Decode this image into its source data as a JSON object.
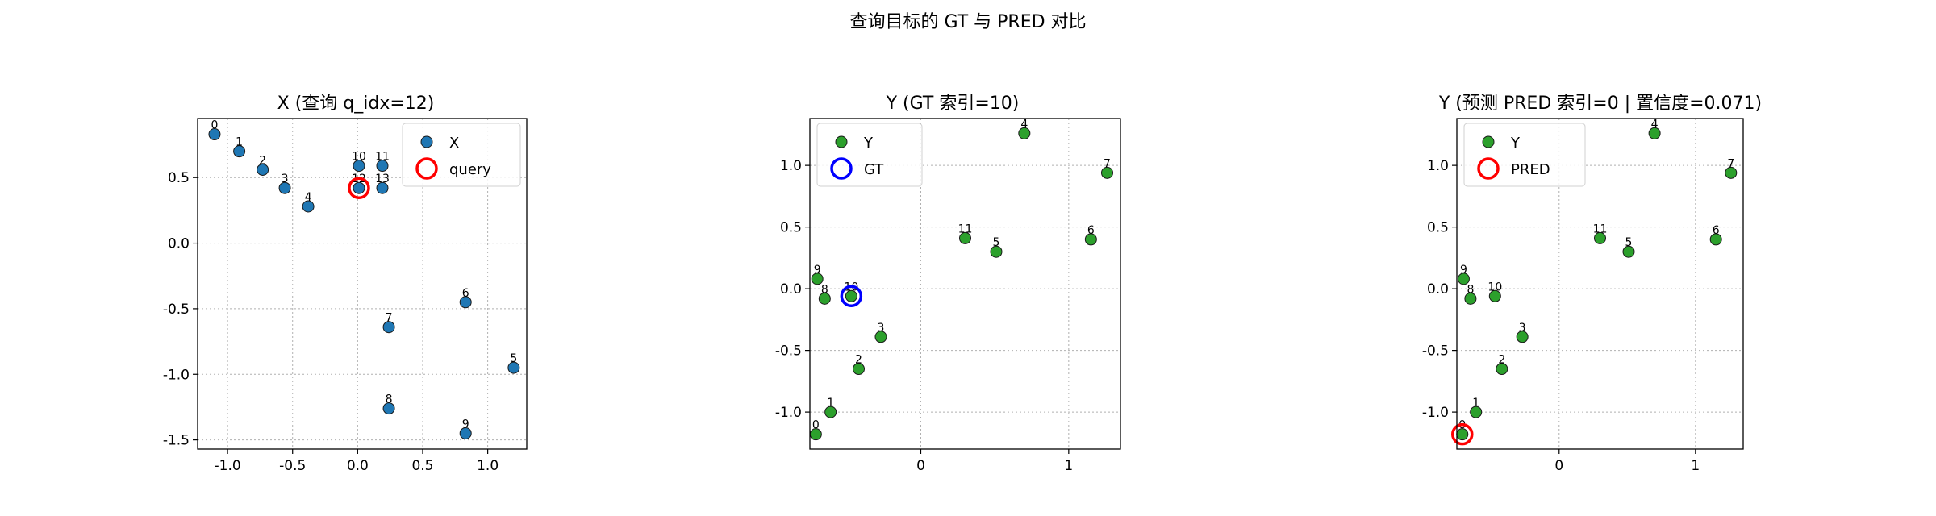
{
  "figure": {
    "suptitle": "查询目标的 GT 与 PRED 对比",
    "colors": {
      "x_points": "#1f77b4",
      "y_points": "#2ca02c",
      "query": "#ff0000",
      "gt": "#0000ff",
      "pred": "#ff0000",
      "grid": "#b0b0b0"
    }
  },
  "chart_data": [
    {
      "type": "scatter",
      "title": "X  (查询 q_idx=12)",
      "xlabel": "",
      "ylabel": "",
      "xlim": [
        -1.23,
        1.3
      ],
      "ylim": [
        -1.57,
        0.95
      ],
      "xticks": [
        -1.0,
        -0.5,
        0.0,
        0.5,
        1.0
      ],
      "xtick_labels": [
        "-1.0",
        "-0.5",
        "0.0",
        "0.5",
        "1.0"
      ],
      "yticks": [
        -1.5,
        -1.0,
        -0.5,
        0.0,
        0.5
      ],
      "ytick_labels": [
        "-1.5",
        "-1.0",
        "-0.5",
        "0.0",
        "0.5"
      ],
      "grid": true,
      "legend": "top-right",
      "series": [
        {
          "name": "X",
          "color": "#1f77b4",
          "marker": "filled-circle",
          "points": [
            {
              "label": "0",
              "x": -1.1,
              "y": 0.83
            },
            {
              "label": "1",
              "x": -0.91,
              "y": 0.7
            },
            {
              "label": "2",
              "x": -0.73,
              "y": 0.56
            },
            {
              "label": "3",
              "x": -0.56,
              "y": 0.42
            },
            {
              "label": "4",
              "x": -0.38,
              "y": 0.28
            },
            {
              "label": "5",
              "x": 1.2,
              "y": -0.95
            },
            {
              "label": "6",
              "x": 0.83,
              "y": -0.45
            },
            {
              "label": "7",
              "x": 0.24,
              "y": -0.64
            },
            {
              "label": "8",
              "x": 0.24,
              "y": -1.26
            },
            {
              "label": "9",
              "x": 0.83,
              "y": -1.45
            },
            {
              "label": "10",
              "x": 0.01,
              "y": 0.59
            },
            {
              "label": "11",
              "x": 0.19,
              "y": 0.59
            },
            {
              "label": "12",
              "x": 0.01,
              "y": 0.42
            },
            {
              "label": "13",
              "x": 0.19,
              "y": 0.42
            }
          ]
        },
        {
          "name": "query",
          "color": "#ff0000",
          "marker": "hollow-ring",
          "points": [
            {
              "x": 0.01,
              "y": 0.42
            }
          ]
        }
      ]
    },
    {
      "type": "scatter",
      "title": "Y  (GT 索引=10)",
      "xlabel": "",
      "ylabel": "",
      "xlim": [
        -0.75,
        1.35
      ],
      "ylim": [
        -1.3,
        1.38
      ],
      "xticks": [
        0,
        1
      ],
      "xtick_labels": [
        "0",
        "1"
      ],
      "yticks": [
        -1.0,
        -0.5,
        0.0,
        0.5,
        1.0
      ],
      "ytick_labels": [
        "-1.0",
        "-0.5",
        "0.0",
        "0.5",
        "1.0"
      ],
      "grid": true,
      "legend": "top-left",
      "series": [
        {
          "name": "Y",
          "color": "#2ca02c",
          "marker": "filled-circle",
          "points": [
            {
              "label": "0",
              "x": -0.71,
              "y": -1.18
            },
            {
              "label": "1",
              "x": -0.61,
              "y": -1.0
            },
            {
              "label": "2",
              "x": -0.42,
              "y": -0.65
            },
            {
              "label": "3",
              "x": -0.27,
              "y": -0.39
            },
            {
              "label": "4",
              "x": 0.7,
              "y": 1.26
            },
            {
              "label": "5",
              "x": 0.51,
              "y": 0.3
            },
            {
              "label": "6",
              "x": 1.15,
              "y": 0.4
            },
            {
              "label": "7",
              "x": 1.26,
              "y": 0.94
            },
            {
              "label": "8",
              "x": -0.65,
              "y": -0.08
            },
            {
              "label": "9",
              "x": -0.7,
              "y": 0.08
            },
            {
              "label": "10",
              "x": -0.47,
              "y": -0.06
            },
            {
              "label": "11",
              "x": 0.3,
              "y": 0.41
            }
          ]
        },
        {
          "name": "GT",
          "color": "#0000ff",
          "marker": "hollow-ring",
          "points": [
            {
              "x": -0.47,
              "y": -0.06
            }
          ]
        }
      ]
    },
    {
      "type": "scatter",
      "title": "Y  (预测 PRED 索引=0 | 置信度=0.071)",
      "xlabel": "",
      "ylabel": "",
      "xlim": [
        -0.75,
        1.35
      ],
      "ylim": [
        -1.3,
        1.38
      ],
      "xticks": [
        0,
        1
      ],
      "xtick_labels": [
        "0",
        "1"
      ],
      "yticks": [
        -1.0,
        -0.5,
        0.0,
        0.5,
        1.0
      ],
      "ytick_labels": [
        "-1.0",
        "-0.5",
        "0.0",
        "0.5",
        "1.0"
      ],
      "grid": true,
      "legend": "top-left",
      "series": [
        {
          "name": "Y",
          "color": "#2ca02c",
          "marker": "filled-circle",
          "points": [
            {
              "label": "0",
              "x": -0.71,
              "y": -1.18
            },
            {
              "label": "1",
              "x": -0.61,
              "y": -1.0
            },
            {
              "label": "2",
              "x": -0.42,
              "y": -0.65
            },
            {
              "label": "3",
              "x": -0.27,
              "y": -0.39
            },
            {
              "label": "4",
              "x": 0.7,
              "y": 1.26
            },
            {
              "label": "5",
              "x": 0.51,
              "y": 0.3
            },
            {
              "label": "6",
              "x": 1.15,
              "y": 0.4
            },
            {
              "label": "7",
              "x": 1.26,
              "y": 0.94
            },
            {
              "label": "8",
              "x": -0.65,
              "y": -0.08
            },
            {
              "label": "9",
              "x": -0.7,
              "y": 0.08
            },
            {
              "label": "10",
              "x": -0.47,
              "y": -0.06
            },
            {
              "label": "11",
              "x": 0.3,
              "y": 0.41
            }
          ]
        },
        {
          "name": "PRED",
          "color": "#ff0000",
          "marker": "hollow-ring",
          "points": [
            {
              "x": -0.71,
              "y": -1.18
            }
          ]
        }
      ]
    }
  ]
}
